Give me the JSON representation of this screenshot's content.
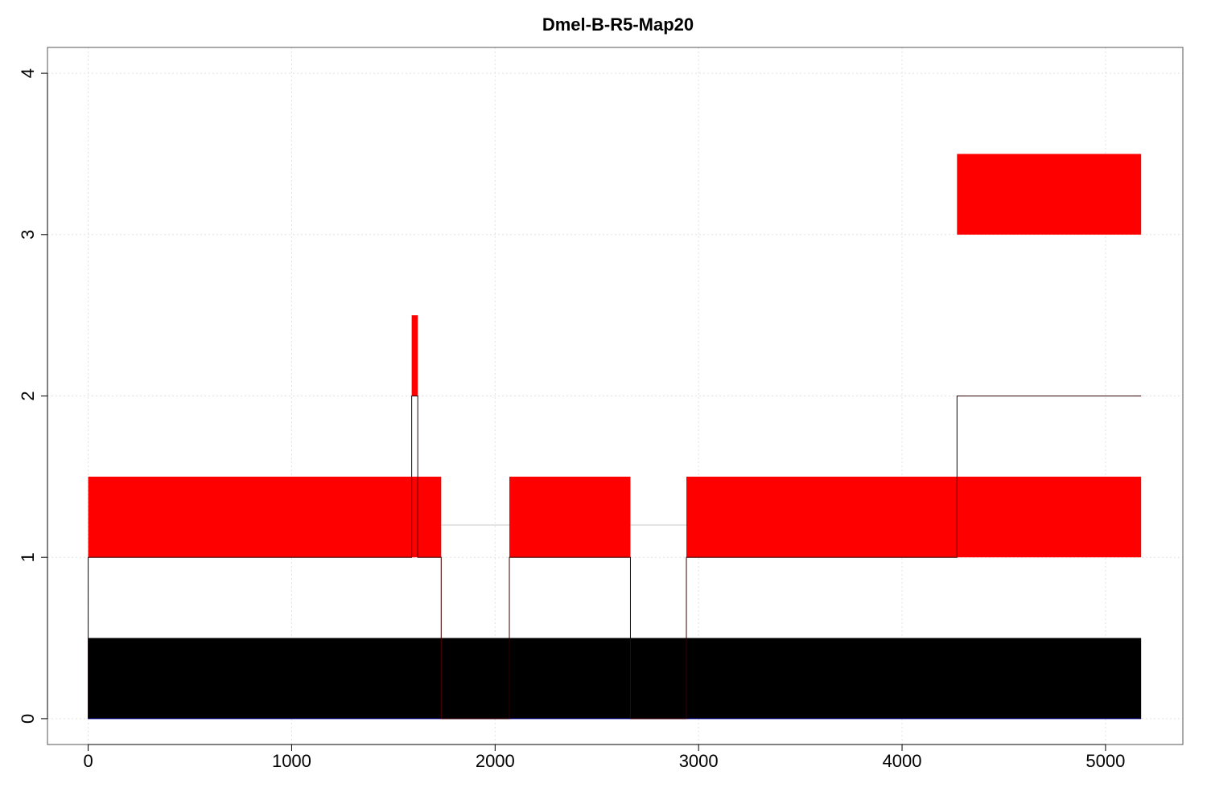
{
  "chart_data": {
    "type": "rect-track",
    "title": "Dmel-B-R5-Map20",
    "xlabel": "",
    "ylabel": "",
    "xlim": [
      -200,
      5380
    ],
    "ylim": [
      -0.16,
      4.16
    ],
    "x_ticks": [
      0,
      1000,
      2000,
      3000,
      4000,
      5000
    ],
    "y_ticks": [
      0,
      1,
      2,
      3,
      4
    ],
    "grid": true,
    "colors": {
      "segment_fill": "#ff0000",
      "coverage_fill": "#000000",
      "profile_line": "#000000",
      "gap_line": "#c8c8c8",
      "grid": "#e2e2e2"
    },
    "coverage_blocks": [
      {
        "x0": 0,
        "x1": 1735,
        "y0": 0,
        "y1": 0.5
      },
      {
        "x0": 1735,
        "x1": 2070,
        "y0": 0,
        "y1": 0.5
      },
      {
        "x0": 2070,
        "x1": 2665,
        "y0": 0,
        "y1": 0.5
      },
      {
        "x0": 2665,
        "x1": 2940,
        "y0": 0,
        "y1": 0.5
      },
      {
        "x0": 2940,
        "x1": 5175,
        "y0": 0,
        "y1": 0.5
      }
    ],
    "segments": [
      {
        "x0": 0,
        "x1": 1735,
        "y0": 1.0,
        "y1": 1.5
      },
      {
        "x0": 1590,
        "x1": 1620,
        "y0": 2.0,
        "y1": 2.5
      },
      {
        "x0": 2070,
        "x1": 2665,
        "y0": 1.0,
        "y1": 1.5
      },
      {
        "x0": 2940,
        "x1": 5175,
        "y0": 1.0,
        "y1": 1.5
      },
      {
        "x0": 4270,
        "x1": 5175,
        "y0": 3.0,
        "y1": 3.5
      }
    ],
    "profile": [
      [
        0,
        0
      ],
      [
        0,
        1
      ],
      [
        1590,
        1
      ],
      [
        1590,
        2
      ],
      [
        1620,
        2
      ],
      [
        1620,
        1
      ],
      [
        1735,
        1
      ],
      [
        1735,
        0
      ],
      [
        2070,
        0
      ],
      [
        2070,
        1
      ],
      [
        2665,
        1
      ],
      [
        2665,
        0
      ],
      [
        2940,
        0
      ],
      [
        2940,
        1
      ],
      [
        4270,
        1
      ],
      [
        4270,
        2
      ],
      [
        5175,
        2
      ]
    ],
    "gap_lines": [
      {
        "x0": 1735,
        "x1": 2070,
        "y": 1.2
      },
      {
        "x0": 2665,
        "x1": 2940,
        "y": 1.2
      }
    ]
  }
}
